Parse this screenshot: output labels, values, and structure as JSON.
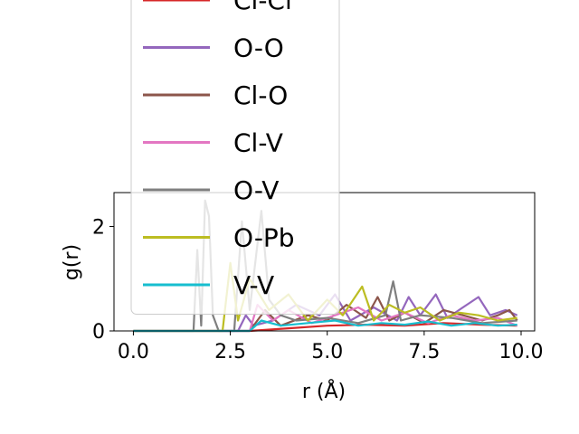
{
  "chart_data": {
    "type": "line",
    "xlabel": "r (Å)",
    "ylabel": "g(r)",
    "xlim": [
      -0.5,
      10.35
    ],
    "ylim": [
      0,
      2.65
    ],
    "x_ticks": [
      0.0,
      2.5,
      5.0,
      7.5,
      10.0
    ],
    "x_tick_labels": [
      "0.0",
      "2.5",
      "5.0",
      "7.5",
      "10.0"
    ],
    "y_ticks": [
      0,
      2
    ],
    "y_tick_labels": [
      "0",
      "2"
    ],
    "legend_position": "upper-center",
    "series": [
      {
        "name": "Cl-Cl",
        "color": "#d62728",
        "x": [
          0,
          1.0,
          2.0,
          3.0,
          4.0,
          5.0,
          6.0,
          7.0,
          8.0,
          9.0,
          9.9
        ],
        "y": [
          0,
          0,
          0,
          0,
          0.05,
          0.1,
          0.12,
          0.1,
          0.15,
          0.12,
          0.1
        ]
      },
      {
        "name": "O-O",
        "color": "#9467bd",
        "x": [
          0,
          2.7,
          2.9,
          3.1,
          3.6,
          4.2,
          4.8,
          5.2,
          5.6,
          6.2,
          6.8,
          7.1,
          7.4,
          7.8,
          8.1,
          8.4,
          8.9,
          9.2,
          9.6,
          9.9
        ],
        "y": [
          0,
          0,
          0.3,
          0.1,
          0.2,
          0.5,
          0.3,
          0.7,
          0.2,
          0.45,
          0.2,
          0.65,
          0.3,
          0.7,
          0.25,
          0.4,
          0.65,
          0.3,
          0.4,
          0.3
        ]
      },
      {
        "name": "Cl-O",
        "color": "#8c564b",
        "x": [
          0,
          3.0,
          3.4,
          3.8,
          4.5,
          5.0,
          5.5,
          6.0,
          6.3,
          6.6,
          7.0,
          7.5,
          8.0,
          8.5,
          9.0,
          9.4,
          9.7,
          9.9
        ],
        "y": [
          0,
          0,
          0.4,
          0.1,
          0.3,
          0.2,
          0.5,
          0.25,
          0.65,
          0.2,
          0.35,
          0.15,
          0.4,
          0.3,
          0.2,
          0.3,
          0.4,
          0.2
        ]
      },
      {
        "name": "Cl-V",
        "color": "#e377c2",
        "x": [
          0,
          3.0,
          3.2,
          3.6,
          4.0,
          4.6,
          5.2,
          5.8,
          6.4,
          7.0,
          7.6,
          8.2,
          8.8,
          9.4,
          9.9
        ],
        "y": [
          0,
          0,
          0.5,
          0.2,
          0.4,
          0.15,
          0.3,
          0.45,
          0.2,
          0.35,
          0.15,
          0.3,
          0.2,
          0.25,
          0.1
        ]
      },
      {
        "name": "O-V",
        "color": "#7f7f7f",
        "x": [
          0,
          1.55,
          1.65,
          1.75,
          1.85,
          1.95,
          2.05,
          2.2,
          2.6,
          2.8,
          3.0,
          3.3,
          3.5,
          3.8,
          4.2,
          5.0,
          5.8,
          6.5,
          6.7,
          6.9,
          7.4,
          8.2,
          9.0,
          9.9
        ],
        "y": [
          0,
          0,
          1.55,
          0.1,
          2.5,
          2.2,
          0.3,
          0,
          0,
          2.1,
          0.4,
          2.3,
          0.6,
          0.3,
          0.2,
          0.25,
          0.15,
          0.3,
          0.95,
          0.2,
          0.3,
          0.25,
          0.15,
          0.2
        ]
      },
      {
        "name": "O-Pb",
        "color": "#bcbd22",
        "x": [
          0,
          2.3,
          2.5,
          2.7,
          3.0,
          3.5,
          4.0,
          4.5,
          5.0,
          5.4,
          5.9,
          6.2,
          6.6,
          7.0,
          7.4,
          7.9,
          8.4,
          8.9,
          9.4,
          9.9
        ],
        "y": [
          0,
          0,
          1.3,
          0.2,
          1.0,
          0.4,
          0.7,
          0.2,
          0.6,
          0.3,
          0.85,
          0.2,
          0.5,
          0.35,
          0.45,
          0.2,
          0.35,
          0.3,
          0.2,
          0.25
        ]
      },
      {
        "name": "V-V",
        "color": "#17becf",
        "x": [
          0,
          3.0,
          3.3,
          3.8,
          4.5,
          5.2,
          5.8,
          6.4,
          7.0,
          7.6,
          8.2,
          8.8,
          9.4,
          9.9
        ],
        "y": [
          0,
          0,
          0.2,
          0.1,
          0.15,
          0.2,
          0.1,
          0.15,
          0.12,
          0.18,
          0.1,
          0.15,
          0.1,
          0.12
        ]
      }
    ]
  }
}
